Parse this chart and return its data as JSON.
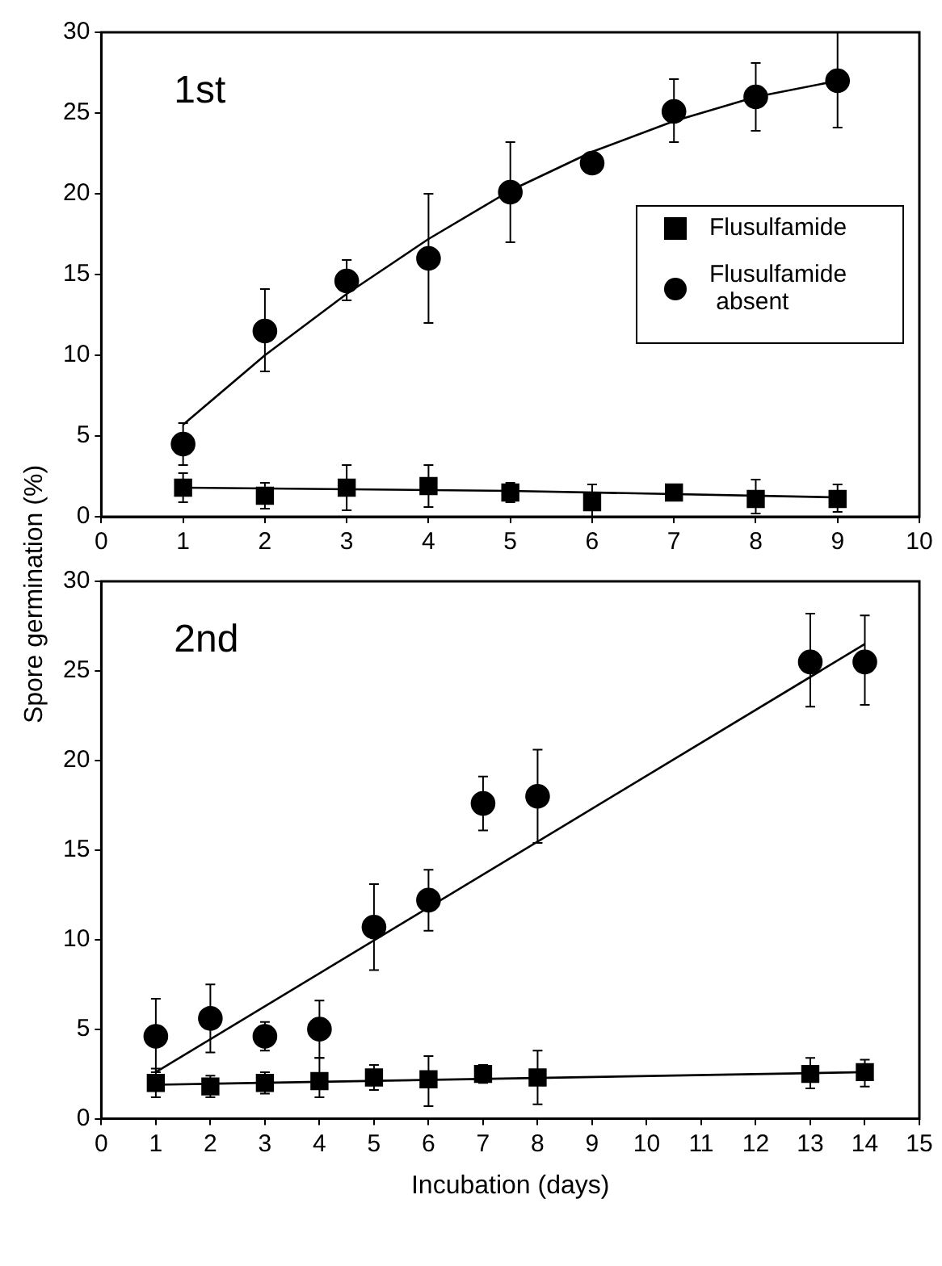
{
  "chart_data": [
    {
      "type": "scatter",
      "title": "1st",
      "ylabel": "Spore germination (%)",
      "xlim": [
        0,
        10
      ],
      "xticks": [
        0,
        1,
        2,
        3,
        4,
        5,
        6,
        7,
        8,
        9,
        10
      ],
      "ylim": [
        0,
        30
      ],
      "yticks": [
        0,
        5,
        10,
        15,
        20,
        25,
        30
      ],
      "grid": false,
      "legend": "right",
      "series": [
        {
          "name": "Flusulfamide",
          "color": "#000000",
          "marker": "square",
          "x": [
            1,
            2,
            3,
            4,
            5,
            6,
            7,
            8,
            9
          ],
          "values": [
            1.8,
            1.3,
            1.8,
            1.9,
            1.5,
            0.9,
            1.5,
            1.1,
            1.1
          ],
          "errors": [
            [
              0.9,
              2.7
            ],
            [
              0.5,
              2.1
            ],
            [
              0.4,
              3.2
            ],
            [
              0.6,
              3.2
            ],
            [
              0.9,
              2.1
            ],
            [
              0,
              2.0
            ],
            null,
            [
              0.2,
              2.3
            ],
            [
              0.3,
              2.0
            ]
          ]
        },
        {
          "name": "Flusulfamide\n absent",
          "color": "#000000",
          "marker": "circle",
          "x": [
            1,
            2,
            3,
            4,
            5,
            6,
            7,
            8,
            9
          ],
          "values": [
            4.5,
            11.5,
            14.6,
            16,
            20.1,
            21.9,
            25.1,
            26,
            27
          ],
          "errors": [
            [
              3.2,
              5.8
            ],
            [
              9,
              14.1
            ],
            [
              13.4,
              15.9
            ],
            [
              12,
              20
            ],
            [
              17,
              23.2
            ],
            null,
            [
              23.2,
              27.1
            ],
            [
              23.9,
              28.1
            ],
            [
              24.1,
              30
            ]
          ]
        },
        {
          "type": "line",
          "color": "#000000",
          "marker": "none",
          "x": [
            1,
            5,
            9
          ],
          "values": [
            1.8,
            1.6,
            1.2
          ]
        },
        {
          "type": "line",
          "color": "#000000",
          "marker": "none",
          "x": [
            1,
            2,
            3,
            4,
            5,
            6,
            7,
            8,
            9
          ],
          "values": [
            5.7,
            10,
            13.8,
            17.2,
            20.2,
            22.6,
            24.5,
            26,
            27
          ]
        }
      ]
    },
    {
      "type": "scatter",
      "title": "2nd",
      "xlabel": "Incubation (days)",
      "xlim": [
        0,
        15
      ],
      "xticks": [
        0,
        1,
        2,
        3,
        4,
        5,
        6,
        7,
        8,
        9,
        10,
        11,
        12,
        13,
        14,
        15
      ],
      "ylim": [
        0,
        30
      ],
      "yticks": [
        0,
        5,
        10,
        15,
        20,
        25,
        30
      ],
      "grid": false,
      "series": [
        {
          "color": "#000000",
          "marker": "square",
          "x": [
            1,
            2,
            3,
            4,
            5,
            6,
            7,
            8,
            13,
            14
          ],
          "values": [
            2.0,
            1.8,
            2.0,
            2.1,
            2.3,
            2.2,
            2.5,
            2.3,
            2.5,
            2.6
          ],
          "errors": [
            [
              1.2,
              2.8
            ],
            [
              1.2,
              2.4
            ],
            [
              1.4,
              2.6
            ],
            [
              1.2,
              3.4
            ],
            [
              1.6,
              3.0
            ],
            [
              0.7,
              3.5
            ],
            [
              2.0,
              3.0
            ],
            [
              0.8,
              3.8
            ],
            [
              1.7,
              3.4
            ],
            [
              1.8,
              3.3
            ]
          ]
        },
        {
          "color": "#000000",
          "marker": "circle",
          "x": [
            1,
            2,
            3,
            4,
            5,
            6,
            7,
            8,
            13,
            14
          ],
          "values": [
            4.6,
            5.6,
            4.6,
            5.0,
            10.7,
            12.2,
            17.6,
            18,
            25.5,
            25.5
          ],
          "errors": [
            [
              2.6,
              6.7
            ],
            [
              3.7,
              7.5
            ],
            [
              3.8,
              5.4
            ],
            [
              3.4,
              6.6
            ],
            [
              8.3,
              13.1
            ],
            [
              10.5,
              13.9
            ],
            [
              16.1,
              19.1
            ],
            [
              15.4,
              20.6
            ],
            [
              23,
              28.2
            ],
            [
              23.1,
              28.1
            ]
          ]
        },
        {
          "type": "line",
          "color": "#000000",
          "marker": "none",
          "x": [
            1,
            14
          ],
          "values": [
            1.9,
            2.6
          ]
        },
        {
          "type": "line",
          "color": "#000000",
          "marker": "none",
          "x": [
            1,
            14
          ],
          "values": [
            2.6,
            26.5
          ]
        }
      ]
    }
  ]
}
